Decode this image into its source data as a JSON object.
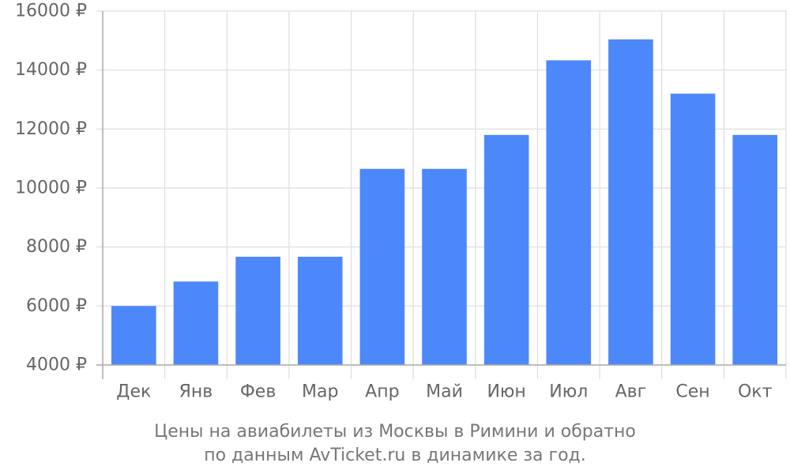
{
  "chart_data": {
    "type": "bar",
    "categories": [
      "Дек",
      "Янв",
      "Фев",
      "Мар",
      "Апр",
      "Май",
      "Июн",
      "Июл",
      "Авг",
      "Сен",
      "Окт"
    ],
    "values": [
      6000,
      6830,
      7670,
      7670,
      10650,
      10650,
      11800,
      14330,
      15040,
      13200,
      11800
    ],
    "ylim": [
      4000,
      16000
    ],
    "yticks": [
      4000,
      6000,
      8000,
      10000,
      12000,
      14000,
      16000
    ],
    "ytick_suffix": " ₽",
    "grid": true,
    "bar_color": "#4d88fa",
    "grid_color": "#dddddd",
    "axis_color": "#aaaaaa",
    "label_color": "#666666",
    "title_line1": "Цены на авиабилеты из Москвы в Римини и обратно",
    "title_line2": "по данным AvTicket.ru в динамике за год."
  }
}
